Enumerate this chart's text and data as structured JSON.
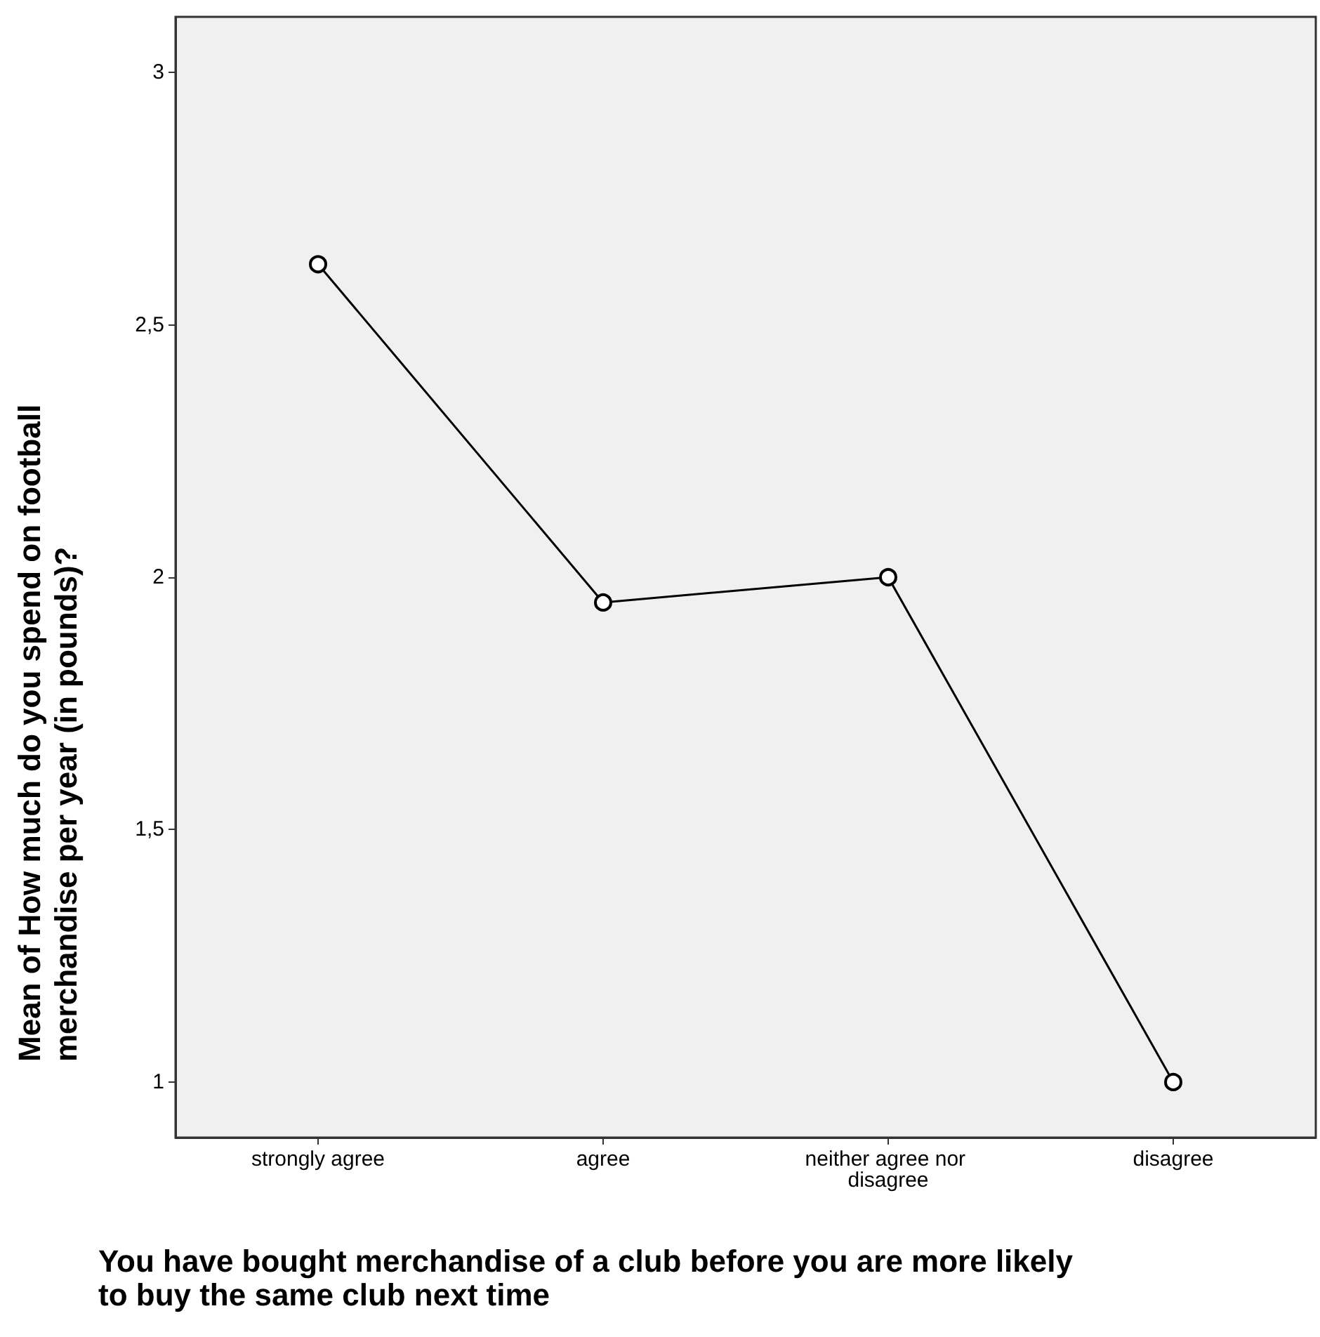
{
  "chart_data": {
    "type": "line",
    "xlabel": "You have bought merchandise of a club before you are more likely to buy the same club next time",
    "ylabel": "Mean of How much do you spend on football merchandise per year (in pounds)?",
    "categories": [
      "strongly agree",
      "agree",
      "neither agree nor disagree",
      "disagree"
    ],
    "series": [
      {
        "color": "#000000",
        "values": [
          2.62,
          1.95,
          2.0,
          1.0
        ]
      }
    ],
    "ylim": [
      0.89,
      3.11
    ],
    "yticks": [
      1,
      {
        "value": 1.5,
        "label": "1,5"
      },
      2,
      {
        "value": 2.5,
        "label": "2,5"
      },
      3
    ],
    "grid": false,
    "marker": "circle",
    "line_style": "solid"
  }
}
